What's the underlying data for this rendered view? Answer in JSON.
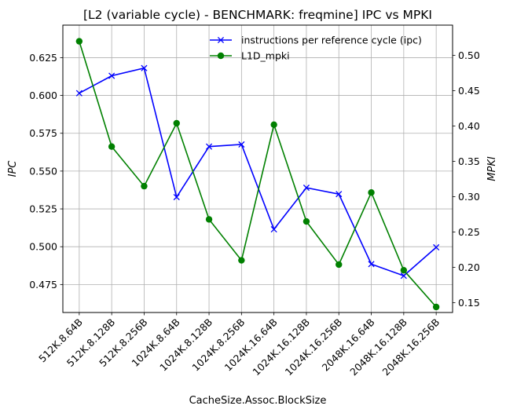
{
  "chart_data": {
    "type": "line",
    "title": "[L2 (variable cycle) - BENCHMARK: freqmine]  IPC vs MPKI",
    "xlabel": "CacheSize.Assoc.BlockSize",
    "ylabel_left": "IPC",
    "ylabel_right": "MPKI",
    "categories": [
      "512K.8.64B",
      "512K.8.128B",
      "512K.8.256B",
      "1024K.8.64B",
      "1024K.8.128B",
      "1024K.8.256B",
      "1024K.16.64B",
      "1024K.16.128B",
      "1024K.16.256B",
      "2048K.16.64B",
      "2048K.16.128B",
      "2048K.16.256B"
    ],
    "ylim_left": [
      0.4565,
      0.6465
    ],
    "ylim_right": [
      0.1362,
      0.5429
    ],
    "yticks_left": [
      0.475,
      0.5,
      0.525,
      0.55,
      0.575,
      0.6,
      0.625
    ],
    "yticks_right": [
      0.15,
      0.2,
      0.25,
      0.3,
      0.35,
      0.4,
      0.45,
      0.5
    ],
    "grid": true,
    "legend_position": "top-right",
    "series": [
      {
        "name": "instructions per reference cycle (ipc)",
        "axis": "left",
        "color": "#0000ff",
        "marker": "x",
        "values": [
          0.6015,
          0.613,
          0.6181,
          0.5328,
          0.5662,
          0.5676,
          0.5115,
          0.539,
          0.5348,
          0.4885,
          0.4808,
          0.4996
        ]
      },
      {
        "name": "L1D_mpki",
        "axis": "right",
        "color": "#008000",
        "marker": "o",
        "values": [
          0.52,
          0.371,
          0.315,
          0.404,
          0.268,
          0.21,
          0.402,
          0.265,
          0.204,
          0.306,
          0.196,
          0.144
        ]
      }
    ]
  }
}
